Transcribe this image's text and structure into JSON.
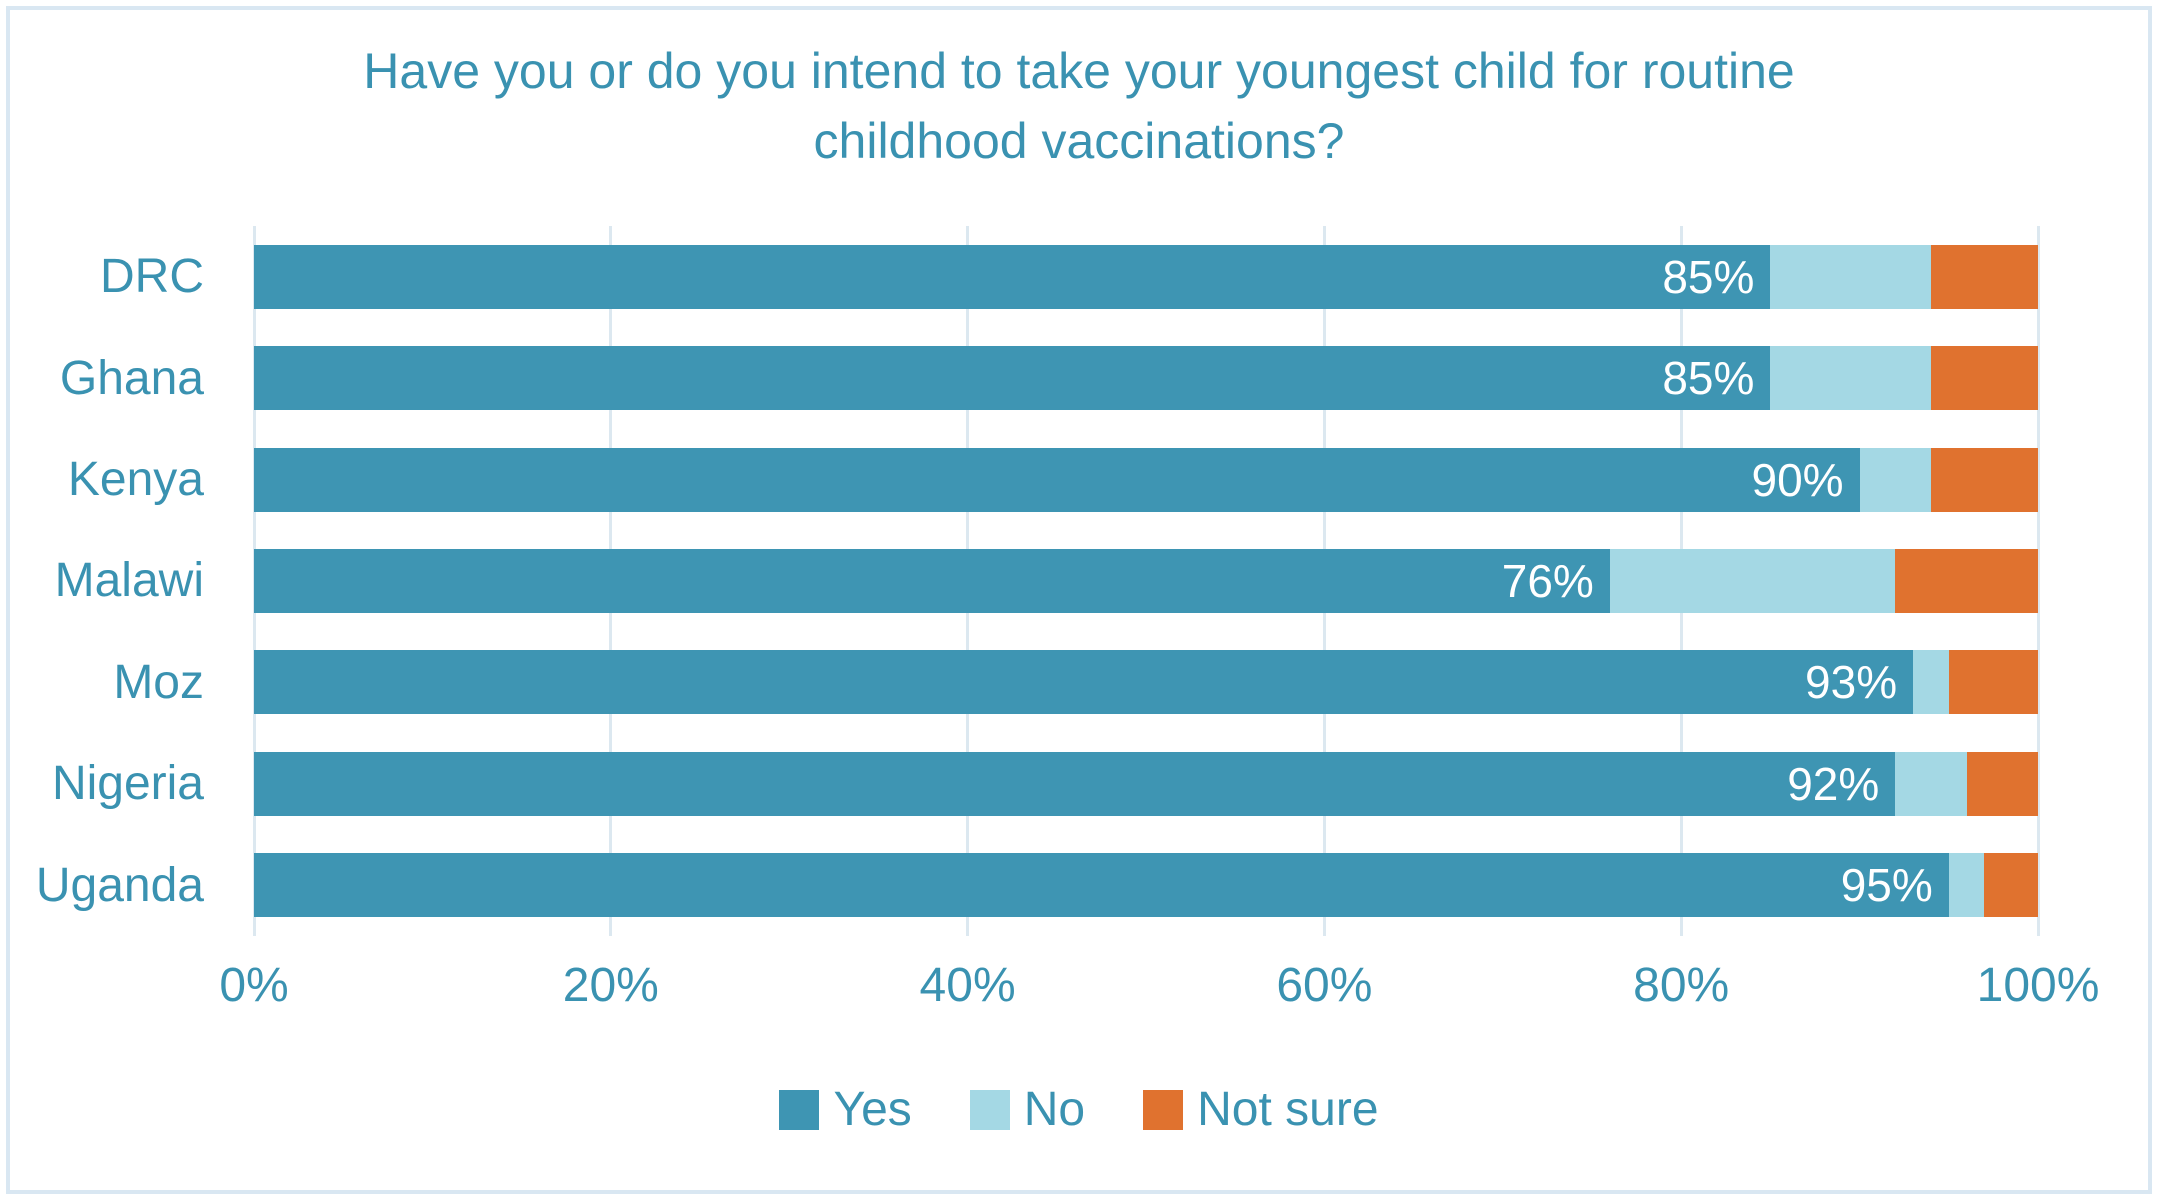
{
  "chart_data": {
    "type": "bar",
    "orientation": "horizontal",
    "stacked": true,
    "title": "Have you or do you intend to take your youngest child for routine childhood vaccinations?",
    "categories": [
      "DRC",
      "Ghana",
      "Kenya",
      "Malawi",
      "Moz",
      "Nigeria",
      "Uganda"
    ],
    "series": [
      {
        "name": "Yes",
        "color": "#3e95b3",
        "values": [
          85,
          85,
          90,
          76,
          93,
          92,
          95
        ],
        "labels": [
          "85%",
          "85%",
          "90%",
          "76%",
          "93%",
          "92%",
          "95%"
        ]
      },
      {
        "name": "No",
        "color": "#a4d8e4",
        "values": [
          9,
          9,
          4,
          16,
          2,
          4,
          2
        ]
      },
      {
        "name": "Not sure",
        "color": "#e0722f",
        "values": [
          6,
          6,
          6,
          8,
          5,
          4,
          3
        ]
      }
    ],
    "x_axis": {
      "ticks": [
        "0%",
        "20%",
        "40%",
        "60%",
        "80%",
        "100%"
      ],
      "range": [
        0,
        100
      ],
      "tick_step": 20
    },
    "legend": {
      "position": "bottom",
      "entries": [
        "Yes",
        "No",
        "Not sure"
      ]
    },
    "grid": true,
    "style": {
      "data_label_color": "#ffffff",
      "text_color": "#3a92b1",
      "grid_color": "#dce8f0",
      "border_color": "#d9e7f2",
      "background": "#ffffff"
    }
  }
}
